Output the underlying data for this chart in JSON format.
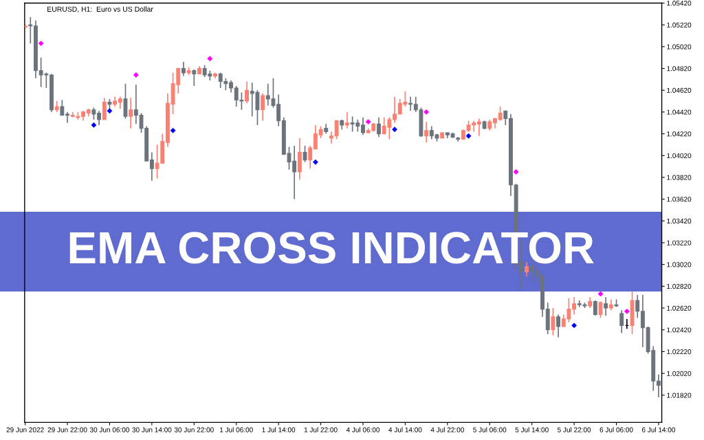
{
  "chart_data": {
    "type": "candlestick",
    "title": "EURUSD, H1:  Euro vs US Dollar",
    "annotations": [
      "EMA CROSS INDICATOR"
    ],
    "categories": [
      "29 Jun 2022",
      null,
      null,
      null,
      null,
      null,
      null,
      null,
      "29 Jun 22:00",
      null,
      null,
      null,
      null,
      null,
      null,
      null,
      "30 Jun 06:00",
      null,
      null,
      null,
      null,
      null,
      null,
      null,
      "30 Jun 14:00",
      null,
      null,
      null,
      null,
      null,
      null,
      null,
      "30 Jun 22:00",
      null,
      null,
      null,
      null,
      null,
      null,
      null,
      "1 Jul 06:00",
      null,
      null,
      null,
      null,
      null,
      null,
      null,
      "1 Jul 14:00",
      null,
      null,
      null,
      null,
      null,
      null,
      null,
      "1 Jul 22:00",
      null,
      null,
      null,
      null,
      null,
      null,
      null,
      "4 Jul 06:00",
      null,
      null,
      null,
      null,
      null,
      null,
      null,
      "4 Jul 14:00",
      null,
      null,
      null,
      null,
      null,
      null,
      null,
      "4 Jul 22:00",
      null,
      null,
      null,
      null,
      null,
      null,
      null,
      "5 Jul 06:00",
      null,
      null,
      null,
      null,
      null,
      null,
      null,
      "5 Jul 14:00",
      null,
      null,
      null,
      null,
      null,
      null,
      null,
      "5 Jul 22:00",
      null,
      null,
      null,
      null,
      null,
      null,
      null,
      "6 Jul 06:00",
      null,
      null,
      null,
      null,
      null,
      null,
      null,
      "6 Jul 14:00"
    ],
    "ohlc": [
      [
        1.052,
        1.0522,
        1.0519,
        1.0521
      ],
      [
        1.0522,
        1.0529,
        1.0505,
        1.0521
      ],
      [
        1.0521,
        1.0526,
        1.0473,
        1.048
      ],
      [
        1.048,
        1.0492,
        1.0465,
        1.0476
      ],
      [
        1.0477,
        1.0478,
        1.0464,
        1.0476
      ],
      [
        1.0476,
        1.0477,
        1.0442,
        1.0444
      ],
      [
        1.0444,
        1.0452,
        1.0442,
        1.0447
      ],
      [
        1.0447,
        1.0453,
        1.0439,
        1.0439
      ],
      [
        1.044,
        1.0442,
        1.0432,
        1.0439
      ],
      [
        1.0438,
        1.0442,
        1.0437,
        1.0439
      ],
      [
        1.0437,
        1.0442,
        1.0435,
        1.0438
      ],
      [
        1.0438,
        1.0443,
        1.0434,
        1.0442
      ],
      [
        1.0441,
        1.0445,
        1.0438,
        1.0444
      ],
      [
        1.0444,
        1.0446,
        1.0435,
        1.044
      ],
      [
        1.0441,
        1.0443,
        1.043,
        1.0435
      ],
      [
        1.0435,
        1.0455,
        1.0435,
        1.0451
      ],
      [
        1.0451,
        1.0454,
        1.0445,
        1.0449
      ],
      [
        1.0449,
        1.0456,
        1.0447,
        1.0452
      ],
      [
        1.0451,
        1.0456,
        1.0445,
        1.0454
      ],
      [
        1.0454,
        1.0468,
        1.0436,
        1.0438
      ],
      [
        1.0438,
        1.0455,
        1.0427,
        1.0444
      ],
      [
        1.0444,
        1.0467,
        1.0431,
        1.0439
      ],
      [
        1.0439,
        1.0441,
        1.0423,
        1.0427
      ],
      [
        1.0427,
        1.0429,
        1.0397,
        1.0397
      ],
      [
        1.0398,
        1.0405,
        1.0379,
        1.039
      ],
      [
        1.039,
        1.0412,
        1.0381,
        1.0395
      ],
      [
        1.0395,
        1.0422,
        1.0395,
        1.0415
      ],
      [
        1.0414,
        1.0459,
        1.041,
        1.045
      ],
      [
        1.0449,
        1.0478,
        1.044,
        1.0468
      ],
      [
        1.0467,
        1.0482,
        1.0459,
        1.0482
      ],
      [
        1.0482,
        1.0488,
        1.0475,
        1.0478
      ],
      [
        1.0478,
        1.0483,
        1.0476,
        1.048
      ],
      [
        1.048,
        1.0481,
        1.0466,
        1.0477
      ],
      [
        1.0477,
        1.0484,
        1.0477,
        1.0482
      ],
      [
        1.0482,
        1.0485,
        1.0474,
        1.0476
      ],
      [
        1.0477,
        1.048,
        1.0471,
        1.0475
      ],
      [
        1.0475,
        1.0478,
        1.0473,
        1.0477
      ],
      [
        1.0477,
        1.0478,
        1.0464,
        1.047
      ],
      [
        1.047,
        1.0473,
        1.0462,
        1.0468
      ],
      [
        1.0469,
        1.0471,
        1.046,
        1.0464
      ],
      [
        1.0464,
        1.0466,
        1.0447,
        1.0453
      ],
      [
        1.0453,
        1.046,
        1.0444,
        1.0452
      ],
      [
        1.0452,
        1.047,
        1.045,
        1.0462
      ],
      [
        1.0461,
        1.0469,
        1.0438,
        1.0459
      ],
      [
        1.046,
        1.0462,
        1.043,
        1.0444
      ],
      [
        1.0444,
        1.0459,
        1.0434,
        1.0457
      ],
      [
        1.0457,
        1.0468,
        1.0448,
        1.0454
      ],
      [
        1.0454,
        1.0473,
        1.0446,
        1.0448
      ],
      [
        1.0449,
        1.0458,
        1.0429,
        1.0434
      ],
      [
        1.0434,
        1.0437,
        1.0403,
        1.0403
      ],
      [
        1.0404,
        1.041,
        1.0389,
        1.0396
      ],
      [
        1.0397,
        1.0411,
        1.0362,
        1.0387
      ],
      [
        1.0387,
        1.0418,
        1.038,
        1.0405
      ],
      [
        1.0405,
        1.0411,
        1.0396,
        1.0398
      ],
      [
        1.0398,
        1.0411,
        1.039,
        1.0409
      ],
      [
        1.0408,
        1.043,
        1.0408,
        1.0422
      ],
      [
        1.0421,
        1.0429,
        1.0418,
        1.0426
      ],
      [
        1.0427,
        1.0431,
        1.0422,
        1.0424
      ],
      [
        1.0418,
        1.0424,
        1.0413,
        1.042
      ],
      [
        1.042,
        1.0434,
        1.0417,
        1.0434
      ],
      [
        1.0434,
        1.0435,
        1.0426,
        1.043
      ],
      [
        1.043,
        1.0442,
        1.0427,
        1.0432
      ],
      [
        1.0432,
        1.0438,
        1.0424,
        1.0431
      ],
      [
        1.0432,
        1.0435,
        1.0424,
        1.0429
      ],
      [
        1.043,
        1.0437,
        1.0421,
        1.0423
      ],
      [
        1.0423,
        1.0427,
        1.0422,
        1.0425
      ],
      [
        1.0425,
        1.0432,
        1.0424,
        1.0431
      ],
      [
        1.0431,
        1.0437,
        1.0419,
        1.0422
      ],
      [
        1.0422,
        1.0437,
        1.0422,
        1.0429
      ],
      [
        1.0428,
        1.0437,
        1.0417,
        1.0435
      ],
      [
        1.0435,
        1.0456,
        1.0432,
        1.044
      ],
      [
        1.044,
        1.0454,
        1.044,
        1.045
      ],
      [
        1.0449,
        1.0461,
        1.0447,
        1.0451
      ],
      [
        1.045,
        1.0456,
        1.0443,
        1.0449
      ],
      [
        1.0449,
        1.0456,
        1.0442,
        1.0444
      ],
      [
        1.0444,
        1.0446,
        1.0419,
        1.042
      ],
      [
        1.042,
        1.0433,
        1.0414,
        1.0425
      ],
      [
        1.0425,
        1.0429,
        1.0417,
        1.042
      ],
      [
        1.0421,
        1.0422,
        1.0415,
        1.0418
      ],
      [
        1.0418,
        1.0423,
        1.0418,
        1.0423
      ],
      [
        1.0423,
        1.0423,
        1.0418,
        1.0421
      ],
      [
        1.0422,
        1.0423,
        1.0418,
        1.0419
      ],
      [
        1.0418,
        1.0419,
        1.0415,
        1.0417
      ],
      [
        1.0417,
        1.0426,
        1.0417,
        1.0425
      ],
      [
        1.0425,
        1.0434,
        1.0424,
        1.043
      ],
      [
        1.043,
        1.0434,
        1.0424,
        1.0432
      ],
      [
        1.0431,
        1.0436,
        1.042,
        1.0433
      ],
      [
        1.0433,
        1.0434,
        1.0426,
        1.0427
      ],
      [
        1.0427,
        1.0435,
        1.0425,
        1.0433
      ],
      [
        1.0432,
        1.0436,
        1.0427,
        1.0436
      ],
      [
        1.0435,
        1.0447,
        1.0434,
        1.0441
      ],
      [
        1.0443,
        1.0443,
        1.043,
        1.0436
      ],
      [
        1.0436,
        1.044,
        1.0365,
        1.0375
      ],
      [
        1.0375,
        1.0376,
        1.0297,
        1.0302
      ],
      [
        1.0305,
        1.0325,
        1.028,
        1.0295
      ],
      [
        1.0295,
        1.0304,
        1.0291,
        1.03
      ],
      [
        1.03,
        1.0304,
        1.0286,
        1.0296
      ],
      [
        1.0296,
        1.0301,
        1.0285,
        1.0292
      ],
      [
        1.0292,
        1.0293,
        1.0254,
        1.0261
      ],
      [
        1.0261,
        1.0267,
        1.0238,
        1.0242
      ],
      [
        1.0242,
        1.0262,
        1.0237,
        1.0254
      ],
      [
        1.0254,
        1.0256,
        1.0235,
        1.0245
      ],
      [
        1.0245,
        1.0256,
        1.0245,
        1.0252
      ],
      [
        1.0252,
        1.0271,
        1.0249,
        1.0261
      ],
      [
        1.0261,
        1.0272,
        1.0256,
        1.0266
      ],
      [
        1.0266,
        1.0269,
        1.0263,
        1.0265
      ],
      [
        1.0265,
        1.0267,
        1.0262,
        1.0264
      ],
      [
        1.0264,
        1.0272,
        1.0262,
        1.0268
      ],
      [
        1.0268,
        1.0269,
        1.0255,
        1.0256
      ],
      [
        1.0256,
        1.0268,
        1.0253,
        1.0267
      ],
      [
        1.0266,
        1.0272,
        1.0255,
        1.0262
      ],
      [
        1.0262,
        1.027,
        1.026,
        1.0265
      ],
      [
        1.0265,
        1.027,
        1.0263,
        1.0264
      ],
      [
        1.0257,
        1.026,
        1.0239,
        1.0246
      ],
      [
        1.0246,
        1.0252,
        1.0243,
        1.0246
      ],
      [
        1.0246,
        1.0277,
        1.0238,
        1.0269
      ],
      [
        1.0269,
        1.0274,
        1.0253,
        1.0259
      ],
      [
        1.0259,
        1.0274,
        1.0226,
        1.0244
      ],
      [
        1.0244,
        1.0245,
        1.022,
        1.0222
      ],
      [
        1.0223,
        1.0227,
        1.0186,
        1.0195
      ],
      [
        1.0195,
        1.0201,
        1.018,
        1.0191
      ]
    ],
    "colors": [
      "#fa8072",
      "#6b737c",
      "#6b737c",
      "#6b737c",
      "#6b737c",
      "#6b737c",
      "#fa8072",
      "#6b737c",
      "#6b737c",
      "#fa8072",
      "#fa8072",
      "#fa8072",
      "#fa8072",
      "#6b737c",
      "#6b737c",
      "#fa8072",
      "#6b737c",
      "#fa8072",
      "#fa8072",
      "#6b737c",
      "#fa8072",
      "#6b737c",
      "#6b737c",
      "#6b737c",
      "#6b737c",
      "#fa8072",
      "#fa8072",
      "#fa8072",
      "#fa8072",
      "#fa8072",
      "#6b737c",
      "#fa8072",
      "#6b737c",
      "#fa8072",
      "#6b737c",
      "#6b737c",
      "#fa8072",
      "#6b737c",
      "#6b737c",
      "#6b737c",
      "#6b737c",
      "#6b737c",
      "#fa8072",
      "#6b737c",
      "#6b737c",
      "#fa8072",
      "#6b737c",
      "#6b737c",
      "#6b737c",
      "#6b737c",
      "#6b737c",
      "#6b737c",
      "#fa8072",
      "#6b737c",
      "#fa8072",
      "#fa8072",
      "#fa8072",
      "#6b737c",
      "#fa8072",
      "#fa8072",
      "#6b737c",
      "#fa8072",
      "#6b737c",
      "#6b737c",
      "#6b737c",
      "#fa8072",
      "#fa8072",
      "#6b737c",
      "#fa8072",
      "#fa8072",
      "#fa8072",
      "#fa8072",
      "#fa8072",
      "#6b737c",
      "#6b737c",
      "#6b737c",
      "#fa8072",
      "#6b737c",
      "#6b737c",
      "#fa8072",
      "#6b737c",
      "#6b737c",
      "#6b737c",
      "#fa8072",
      "#fa8072",
      "#fa8072",
      "#fa8072",
      "#6b737c",
      "#fa8072",
      "#fa8072",
      "#fa8072",
      "#6b737c",
      "#6b737c",
      "#6b737c",
      "#6b737c",
      "#fa8072",
      "#6b737c",
      "#6b737c",
      "#6b737c",
      "#6b737c",
      "#fa8072",
      "#6b737c",
      "#fa8072",
      "#fa8072",
      "#fa8072",
      "#6b737c",
      "#6b737c",
      "#fa8072",
      "#6b737c",
      "#fa8072",
      "#6b737c",
      "#fa8072",
      "#6b737c",
      "#6b737c",
      "#000000",
      "#fa8072",
      "#6b737c",
      "#6b737c",
      "#6b737c",
      "#6b737c",
      "#6b737c"
    ],
    "series": [
      {
        "type": "scatter",
        "color": "#ff00ff",
        "marker": "diamond",
        "values": [
          null,
          null,
          null,
          1.0505,
          null,
          null,
          null,
          null,
          null,
          null,
          null,
          null,
          null,
          null,
          null,
          null,
          null,
          null,
          null,
          null,
          null,
          1.0476,
          null,
          null,
          null,
          null,
          null,
          null,
          null,
          null,
          null,
          null,
          null,
          null,
          null,
          1.0491,
          null,
          null,
          null,
          null,
          null,
          null,
          null,
          null,
          null,
          null,
          null,
          null,
          null,
          null,
          null,
          null,
          null,
          null,
          null,
          null,
          null,
          null,
          null,
          null,
          null,
          null,
          null,
          null,
          null,
          1.0433,
          null,
          null,
          null,
          null,
          null,
          null,
          null,
          null,
          null,
          null,
          1.0442,
          null,
          null,
          null,
          null,
          null,
          null,
          null,
          null,
          null,
          null,
          null,
          null,
          null,
          null,
          null,
          null,
          1.0387,
          null,
          null,
          null,
          null,
          null,
          null,
          null,
          null,
          null,
          null,
          null,
          null,
          null,
          null,
          null,
          1.0275,
          null,
          null,
          null,
          null,
          1.0259,
          null,
          null,
          null,
          null,
          null,
          null
        ]
      },
      {
        "type": "scatter",
        "color": "#0000ff",
        "marker": "diamond",
        "values": [
          null,
          null,
          null,
          null,
          null,
          null,
          null,
          null,
          null,
          null,
          null,
          null,
          null,
          1.043,
          null,
          null,
          1.0443,
          null,
          null,
          null,
          null,
          null,
          null,
          null,
          null,
          null,
          null,
          null,
          1.0425,
          null,
          null,
          null,
          null,
          null,
          null,
          null,
          null,
          null,
          null,
          null,
          null,
          null,
          null,
          null,
          null,
          null,
          null,
          null,
          null,
          null,
          null,
          null,
          null,
          null,
          null,
          1.0396,
          null,
          null,
          null,
          null,
          null,
          null,
          null,
          null,
          null,
          null,
          null,
          null,
          null,
          null,
          1.0426,
          null,
          null,
          null,
          null,
          null,
          null,
          null,
          null,
          null,
          null,
          null,
          null,
          null,
          1.042,
          null,
          null,
          null,
          null,
          null,
          null,
          null,
          null,
          null,
          null,
          null,
          null,
          null,
          null,
          null,
          null,
          null,
          null,
          null,
          1.0246,
          null,
          null,
          null,
          null,
          null,
          null,
          null,
          null,
          null,
          null,
          null,
          null,
          null,
          null,
          null,
          null
        ]
      }
    ],
    "ylim": [
      1.0157,
      1.0542
    ],
    "yticks": [
      {
        "value": 1.0182,
        "label": "1.01820"
      },
      {
        "value": 1.0202,
        "label": "1.02020"
      },
      {
        "value": 1.0222,
        "label": "1.02220"
      },
      {
        "value": 1.0242,
        "label": "1.02420"
      },
      {
        "value": 1.0262,
        "label": "1.02620"
      },
      {
        "value": 1.0282,
        "label": "1.02820"
      },
      {
        "value": 1.0302,
        "label": "1.03020"
      },
      {
        "value": 1.0322,
        "label": "1.03220"
      },
      {
        "value": 1.0342,
        "label": "1.03420"
      },
      {
        "value": 1.0362,
        "label": "1.03620"
      },
      {
        "value": 1.0382,
        "label": "1.03820"
      },
      {
        "value": 1.0402,
        "label": "1.04020"
      },
      {
        "value": 1.0422,
        "label": "1.04220"
      },
      {
        "value": 1.0442,
        "label": "1.04420"
      },
      {
        "value": 1.0462,
        "label": "1.04620"
      },
      {
        "value": 1.0482,
        "label": "1.04820"
      },
      {
        "value": 1.0502,
        "label": "1.05020"
      },
      {
        "value": 1.0522,
        "label": "1.05220"
      },
      {
        "value": 1.0542,
        "label": "1.05420"
      }
    ],
    "grid": false,
    "legend": false
  }
}
